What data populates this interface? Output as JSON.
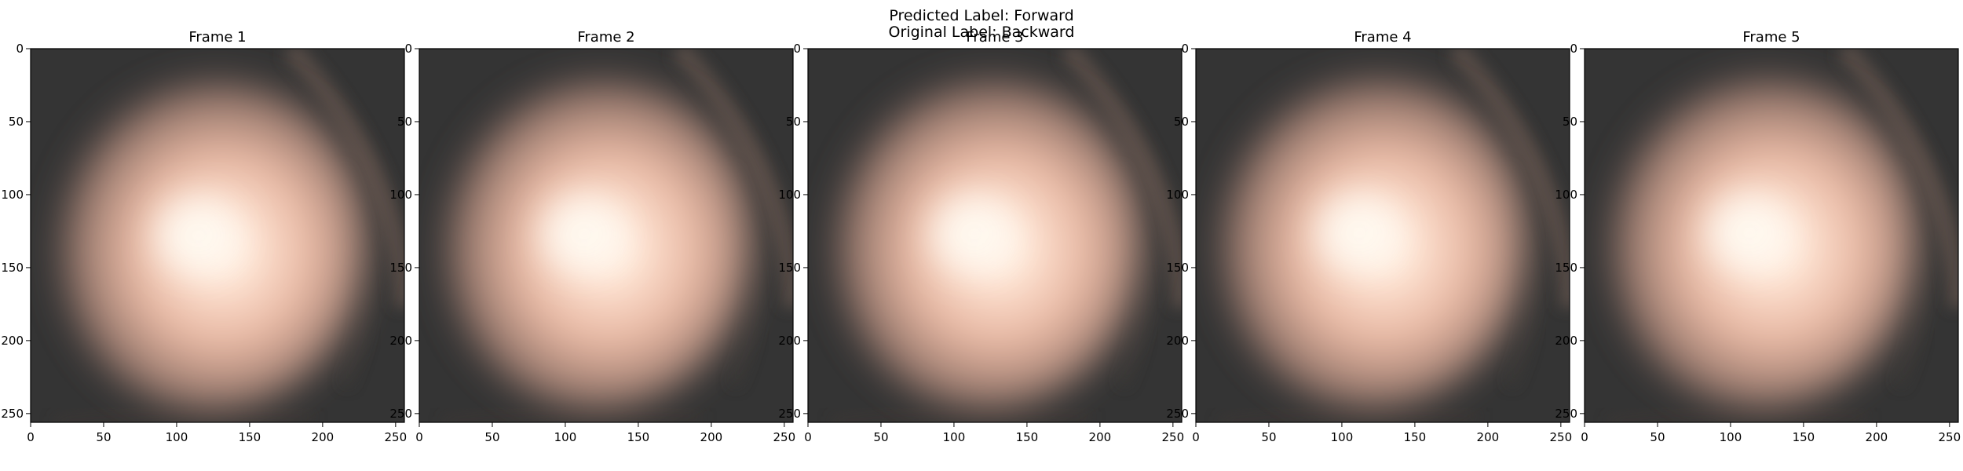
{
  "figure": {
    "title_line_1": "Predicted Label: Forward",
    "title_line_2": "Original Label: Backward"
  },
  "frames": [
    {
      "title": "Frame 1",
      "spot_center": [
        115,
        128
      ]
    },
    {
      "title": "Frame 2",
      "spot_center": [
        113,
        127
      ]
    },
    {
      "title": "Frame 3",
      "spot_center": [
        114,
        127
      ]
    },
    {
      "title": "Frame 4",
      "spot_center": [
        112,
        126
      ]
    },
    {
      "title": "Frame 5",
      "spot_center": [
        113,
        126
      ]
    }
  ],
  "axes": {
    "xlim": [
      0,
      256
    ],
    "ylim": [
      256,
      0
    ],
    "xticks": [
      "0",
      "50",
      "100",
      "150",
      "200",
      "250"
    ],
    "yticks": [
      "0",
      "50",
      "100",
      "150",
      "200",
      "250"
    ]
  },
  "colors": {
    "background": "#343434",
    "glow_core": "#fffaf2",
    "glow_mid": "#e8b8a3",
    "glow_edge": "#8a6e64",
    "arc": "#5c5048"
  }
}
